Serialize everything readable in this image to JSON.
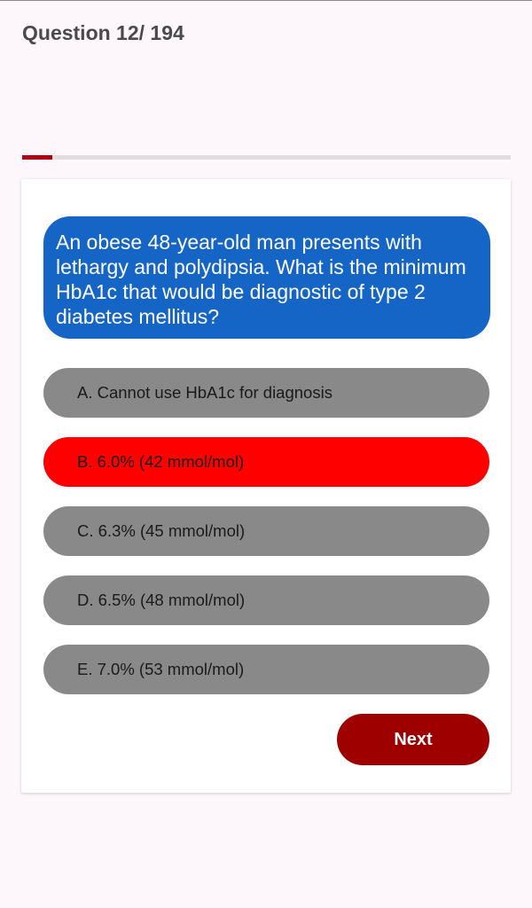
{
  "header": {
    "question_counter": "Question 12/ 194"
  },
  "progress": {
    "current": 12,
    "total": 194,
    "fraction": 0.062
  },
  "question": {
    "text": "An obese 48-year-old man presents with lethargy and polydipsia. What is the minimum HbA1c that would be diagnostic of type 2 diabetes mellitus?"
  },
  "options": [
    {
      "label": "A. Cannot use HbA1c for diagnosis",
      "selected": false
    },
    {
      "label": "B. 6.0% (42 mmol/mol)",
      "selected": true
    },
    {
      "label": "C. 6.3% (45 mmol/mol)",
      "selected": false
    },
    {
      "label": "D. 6.5% (48 mmol/mol)",
      "selected": false
    },
    {
      "label": "E. 7.0% (53 mmol/mol)",
      "selected": false
    }
  ],
  "actions": {
    "next_label": "Next"
  },
  "colors": {
    "question_bubble": "#1565c7",
    "option_default": "#898989",
    "option_selected": "#fe0000",
    "next_button": "#9e0000",
    "progress_fill": "#b00012",
    "progress_track": "#e2dde1"
  }
}
